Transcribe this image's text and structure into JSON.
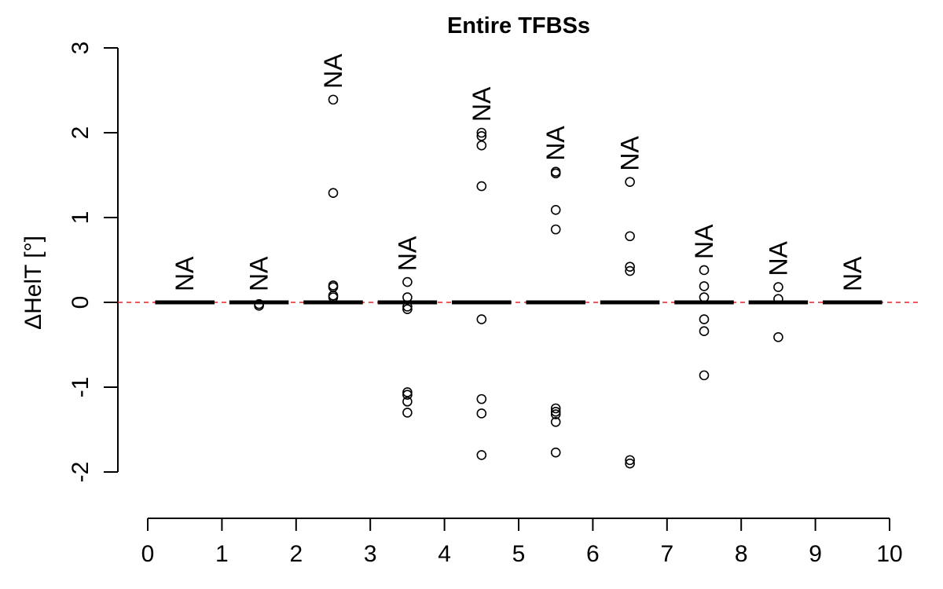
{
  "chart_data": {
    "type": "boxplot",
    "title": "Entire TFBSs",
    "ylabel": "ΔHelT [°]",
    "xlabel": "",
    "ylim": [
      -2.6,
      3.05
    ],
    "xlim": [
      0,
      10
    ],
    "x_ticks": [
      "0",
      "1",
      "2",
      "3",
      "4",
      "5",
      "6",
      "7",
      "8",
      "9",
      "10"
    ],
    "y_ticks": [
      "-2",
      "-1",
      "0",
      "1",
      "2",
      "3"
    ],
    "reference_line": {
      "y": 0,
      "color": "#e8202a",
      "style": "dashed"
    },
    "box_color": "#000000",
    "point_color": "#000000",
    "groups": [
      {
        "x": 0.5,
        "median": 0,
        "label": "NA",
        "outliers": []
      },
      {
        "x": 1.5,
        "median": 0,
        "label": "NA",
        "outliers": [
          -0.02,
          -0.04
        ]
      },
      {
        "x": 2.5,
        "median": 0,
        "label": "NA",
        "outliers": [
          2.39,
          1.29,
          0.2,
          0.18,
          0.08,
          0.06
        ]
      },
      {
        "x": 3.5,
        "median": 0,
        "label": "NA",
        "outliers": [
          0.24,
          0.06,
          -0.05,
          -0.08,
          -1.06,
          -1.09,
          -1.17,
          -1.3
        ]
      },
      {
        "x": 4.5,
        "median": 0,
        "label": "NA",
        "outliers": [
          2.0,
          1.96,
          1.85,
          1.37,
          -0.2,
          -1.14,
          -1.31,
          -1.8
        ]
      },
      {
        "x": 5.5,
        "median": 0,
        "label": "NA",
        "outliers": [
          1.54,
          1.52,
          1.09,
          0.86,
          -1.25,
          -1.29,
          -1.32,
          -1.41,
          -1.77
        ]
      },
      {
        "x": 6.5,
        "median": 0,
        "label": "NA",
        "outliers": [
          1.42,
          0.78,
          0.42,
          0.37,
          -1.86,
          -1.9
        ]
      },
      {
        "x": 7.5,
        "median": 0,
        "label": "NA",
        "outliers": [
          0.38,
          0.19,
          0.06,
          -0.2,
          -0.34,
          -0.86
        ]
      },
      {
        "x": 8.5,
        "median": 0,
        "label": "NA",
        "outliers": [
          0.18,
          0.04,
          -0.41
        ]
      },
      {
        "x": 9.5,
        "median": 0,
        "label": "NA",
        "outliers": []
      }
    ]
  }
}
